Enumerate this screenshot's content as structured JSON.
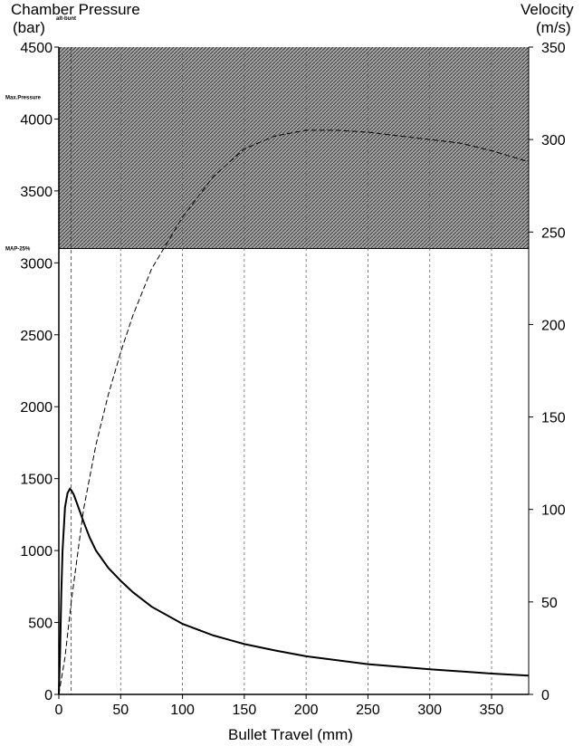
{
  "chart_data": {
    "type": "line",
    "left_axis_title": [
      "Chamber Pressure",
      "(bar)"
    ],
    "left_axis_note": "alt-bunt",
    "right_axis_title": [
      "Velocity",
      "(m/s)"
    ],
    "xlabel": "Bullet Travel (mm)",
    "xlim": [
      0,
      380
    ],
    "ylim_left": [
      0,
      4500
    ],
    "ylim_right": [
      0,
      350
    ],
    "x_ticks": [
      0,
      50,
      100,
      150,
      200,
      250,
      300,
      350
    ],
    "y_left_ticks": [
      0,
      500,
      1000,
      1500,
      2000,
      2500,
      3000,
      3500,
      4000,
      4500
    ],
    "y_right_ticks": [
      0,
      50,
      100,
      150,
      200,
      250,
      300,
      350
    ],
    "grid": true,
    "bands": [
      {
        "label": "Max.Pressure",
        "from": 3100,
        "to": 4500,
        "axis": "left",
        "color": "#8a8a8a"
      }
    ],
    "band_labels": [
      {
        "text": "Max.Pressure",
        "y": 4150
      },
      {
        "text": "MAP-25%",
        "y": 3100
      }
    ],
    "reference_lines_x": [
      10
    ],
    "series": [
      {
        "axis": "left",
        "style": "solid",
        "x": [
          0,
          1,
          2,
          3,
          5,
          7,
          9,
          10,
          12,
          15,
          20,
          25,
          30,
          40,
          50,
          60,
          75,
          100,
          125,
          150,
          175,
          200,
          250,
          300,
          350,
          380
        ],
        "values": [
          0,
          300,
          700,
          1000,
          1300,
          1400,
          1430,
          1420,
          1390,
          1320,
          1200,
          1090,
          1000,
          880,
          790,
          710,
          610,
          490,
          410,
          350,
          305,
          265,
          210,
          175,
          145,
          130
        ]
      },
      {
        "axis": "right",
        "style": "dashed",
        "x": [
          0,
          5,
          10,
          15,
          20,
          30,
          40,
          50,
          60,
          75,
          100,
          125,
          150,
          175,
          200,
          225,
          250,
          275,
          300,
          325,
          350,
          380
        ],
        "values": [
          0,
          20,
          50,
          75,
          100,
          135,
          162,
          185,
          205,
          230,
          258,
          280,
          295,
          302,
          305,
          305,
          304,
          302,
          300,
          298,
          294,
          288
        ]
      }
    ]
  }
}
